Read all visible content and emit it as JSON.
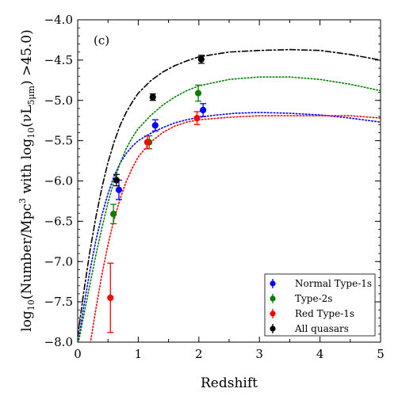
{
  "chart_data": {
    "type": "scatter",
    "panel_label": "(c)",
    "xlabel": "Redshift",
    "ylabel_parts": {
      "main": "log",
      "sub1": "10",
      "mid": "(Number/Mpc",
      "sup": "3",
      "with": " with log",
      "sub2": "10",
      "paren_open": "(νL",
      "sub3": "5μm",
      "tail": ") >45.0)"
    },
    "xlim": [
      0,
      5
    ],
    "ylim": [
      -8.0,
      -4.0
    ],
    "x_ticks": [
      0,
      1,
      2,
      3,
      4,
      5
    ],
    "x_tick_labels": [
      "0",
      "1",
      "2",
      "3",
      "4",
      "5"
    ],
    "y_ticks": [
      -4.0,
      -4.5,
      -5.0,
      -5.5,
      -6.0,
      -6.5,
      -7.0,
      -7.5,
      -8.0
    ],
    "y_tick_labels": [
      "−4.0",
      "−4.5",
      "−5.0",
      "−5.5",
      "−6.0",
      "−6.5",
      "−7.0",
      "−7.5",
      "−8.0"
    ],
    "legend_position": "lower-right",
    "series": [
      {
        "name": "Normal Type-1s",
        "color": "#0000ff",
        "points": [
          {
            "x": 0.68,
            "y": -6.11,
            "err": 0.12
          },
          {
            "x": 1.28,
            "y": -5.31,
            "err": 0.07
          },
          {
            "x": 2.07,
            "y": -5.12,
            "err": 0.08
          }
        ],
        "model": [
          [
            0.0,
            -8.05
          ],
          [
            0.1,
            -7.56
          ],
          [
            0.2,
            -7.12
          ],
          [
            0.3,
            -6.74
          ],
          [
            0.4,
            -6.42
          ],
          [
            0.5,
            -6.16
          ],
          [
            0.6,
            -5.94
          ],
          [
            0.7,
            -5.78
          ],
          [
            0.8,
            -5.66
          ],
          [
            0.9,
            -5.57
          ],
          [
            1.0,
            -5.5
          ],
          [
            1.2,
            -5.41
          ],
          [
            1.4,
            -5.34
          ],
          [
            1.6,
            -5.28
          ],
          [
            1.8,
            -5.24
          ],
          [
            2.0,
            -5.21
          ],
          [
            2.3,
            -5.18
          ],
          [
            2.6,
            -5.16
          ],
          [
            3.0,
            -5.15
          ],
          [
            3.5,
            -5.16
          ],
          [
            4.0,
            -5.18
          ],
          [
            4.5,
            -5.22
          ],
          [
            5.0,
            -5.27
          ]
        ]
      },
      {
        "name": "Type-2s",
        "color": "#008000",
        "points": [
          {
            "x": 0.59,
            "y": -6.41,
            "err": 0.12
          },
          {
            "x": 1.18,
            "y": -5.52,
            "err": 0.08
          },
          {
            "x": 1.99,
            "y": -4.91,
            "err": 0.1
          }
        ],
        "model": [
          [
            0.0,
            -8.05
          ],
          [
            0.1,
            -7.67
          ],
          [
            0.2,
            -7.29
          ],
          [
            0.3,
            -6.92
          ],
          [
            0.4,
            -6.58
          ],
          [
            0.5,
            -6.27
          ],
          [
            0.6,
            -6.0
          ],
          [
            0.7,
            -5.78
          ],
          [
            0.8,
            -5.6
          ],
          [
            0.9,
            -5.46
          ],
          [
            1.0,
            -5.35
          ],
          [
            1.2,
            -5.19
          ],
          [
            1.4,
            -5.06
          ],
          [
            1.6,
            -4.96
          ],
          [
            1.8,
            -4.88
          ],
          [
            2.0,
            -4.82
          ],
          [
            2.5,
            -4.74
          ],
          [
            3.0,
            -4.71
          ],
          [
            3.5,
            -4.71
          ],
          [
            4.0,
            -4.74
          ],
          [
            4.5,
            -4.8
          ],
          [
            5.0,
            -4.88
          ]
        ]
      },
      {
        "name": "Red Type-1s",
        "color": "#ff0000",
        "points": [
          {
            "x": 0.54,
            "y": -7.45,
            "err": 0.43
          },
          {
            "x": 1.15,
            "y": -5.52,
            "err": 0.08
          },
          {
            "x": 1.97,
            "y": -5.22,
            "err": 0.08
          }
        ],
        "model": [
          [
            0.2,
            -8.05
          ],
          [
            0.3,
            -7.59
          ],
          [
            0.4,
            -7.16
          ],
          [
            0.5,
            -6.79
          ],
          [
            0.6,
            -6.48
          ],
          [
            0.7,
            -6.22
          ],
          [
            0.8,
            -6.01
          ],
          [
            0.9,
            -5.84
          ],
          [
            1.0,
            -5.7
          ],
          [
            1.2,
            -5.52
          ],
          [
            1.4,
            -5.4
          ],
          [
            1.6,
            -5.32
          ],
          [
            1.8,
            -5.27
          ],
          [
            2.0,
            -5.24
          ],
          [
            2.5,
            -5.21
          ],
          [
            3.0,
            -5.19
          ],
          [
            3.5,
            -5.19
          ],
          [
            4.0,
            -5.19
          ],
          [
            4.5,
            -5.19
          ],
          [
            5.0,
            -5.22
          ]
        ]
      },
      {
        "name": "All quasars",
        "color": "#000000",
        "points": [
          {
            "x": 0.64,
            "y": -5.99,
            "err": 0.07
          },
          {
            "x": 1.24,
            "y": -4.96,
            "err": 0.04
          },
          {
            "x": 2.04,
            "y": -4.49,
            "err": 0.05
          }
        ],
        "model": [
          [
            0.0,
            -7.93
          ],
          [
            0.1,
            -7.38
          ],
          [
            0.2,
            -6.88
          ],
          [
            0.3,
            -6.45
          ],
          [
            0.4,
            -6.08
          ],
          [
            0.5,
            -5.77
          ],
          [
            0.6,
            -5.52
          ],
          [
            0.7,
            -5.31
          ],
          [
            0.8,
            -5.15
          ],
          [
            0.9,
            -5.02
          ],
          [
            1.0,
            -4.91
          ],
          [
            1.2,
            -4.76
          ],
          [
            1.4,
            -4.65
          ],
          [
            1.6,
            -4.57
          ],
          [
            1.8,
            -4.51
          ],
          [
            2.0,
            -4.46
          ],
          [
            2.5,
            -4.4
          ],
          [
            3.0,
            -4.38
          ],
          [
            3.5,
            -4.37
          ],
          [
            4.0,
            -4.38
          ],
          [
            4.5,
            -4.43
          ],
          [
            5.0,
            -4.5
          ]
        ]
      }
    ]
  }
}
